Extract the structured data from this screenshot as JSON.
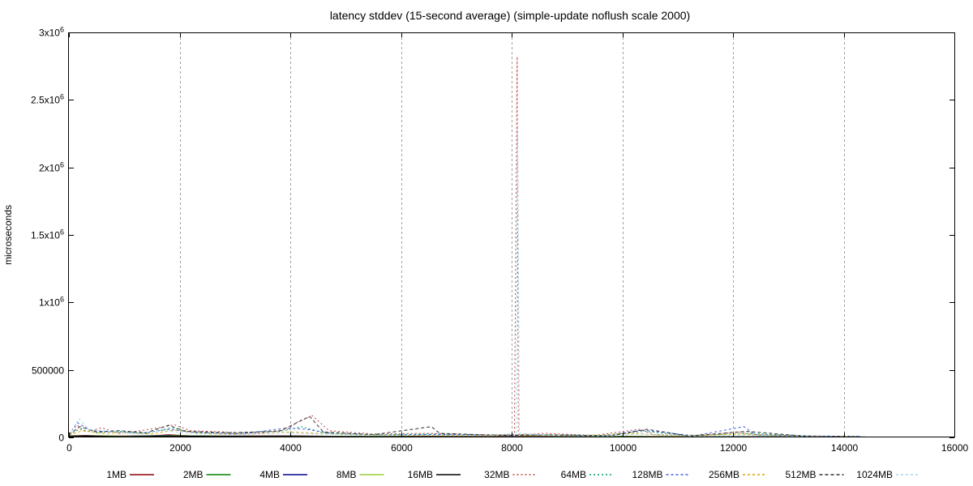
{
  "chart_data": {
    "type": "line",
    "title": "latency stddev (15-second average) (simple-update noflush scale 2000)",
    "xlabel": "",
    "ylabel": "microseconds",
    "xlim": [
      0,
      16000
    ],
    "ylim": [
      0,
      3000000
    ],
    "grid": "vertical dashed at x ticks",
    "legend_placement": "bottom",
    "x_ticks": [
      {
        "value": 0,
        "label": "0"
      },
      {
        "value": 2000,
        "label": "2000"
      },
      {
        "value": 4000,
        "label": "4000"
      },
      {
        "value": 6000,
        "label": "6000"
      },
      {
        "value": 8000,
        "label": "8000"
      },
      {
        "value": 10000,
        "label": "10000"
      },
      {
        "value": 12000,
        "label": "12000"
      },
      {
        "value": 14000,
        "label": "14000"
      },
      {
        "value": 16000,
        "label": "16000"
      }
    ],
    "y_ticks": [
      {
        "value": 0,
        "label": "0",
        "sup": ""
      },
      {
        "value": 500000,
        "label": "500000",
        "sup": ""
      },
      {
        "value": 1000000,
        "label": "1x10",
        "sup": "6"
      },
      {
        "value": 1500000,
        "label": "1.5x10",
        "sup": "6"
      },
      {
        "value": 2000000,
        "label": "2x10",
        "sup": "6"
      },
      {
        "value": 2500000,
        "label": "2.5x10",
        "sup": "6"
      },
      {
        "value": 3000000,
        "label": "3x10",
        "sup": "6"
      }
    ],
    "series": [
      {
        "name": "1MB",
        "color": "#8b0000",
        "dash": "solid",
        "xmax": 14300,
        "points": [
          [
            0,
            12000
          ],
          [
            300,
            15000
          ],
          [
            800,
            10000
          ],
          [
            1500,
            12000
          ],
          [
            1800,
            20000
          ],
          [
            2200,
            12000
          ],
          [
            3000,
            10000
          ],
          [
            4000,
            12000
          ],
          [
            5000,
            8000
          ],
          [
            6000,
            9000
          ],
          [
            8000,
            7000
          ],
          [
            10000,
            8000
          ],
          [
            12000,
            6000
          ],
          [
            14300,
            5000
          ]
        ]
      },
      {
        "name": "2MB",
        "color": "#008000",
        "dash": "solid",
        "xmax": 14200,
        "points": [
          [
            0,
            10000
          ],
          [
            400,
            12000
          ],
          [
            1000,
            9000
          ],
          [
            1800,
            15000
          ],
          [
            2500,
            10000
          ],
          [
            3500,
            8000
          ],
          [
            4500,
            9000
          ],
          [
            6000,
            7000
          ],
          [
            8000,
            6000
          ],
          [
            10000,
            7000
          ],
          [
            12000,
            6000
          ],
          [
            14200,
            5000
          ]
        ]
      },
      {
        "name": "4MB",
        "color": "#00008b",
        "dash": "solid",
        "xmax": 14300,
        "points": [
          [
            0,
            9000
          ],
          [
            300,
            11000
          ],
          [
            900,
            8000
          ],
          [
            1800,
            13000
          ],
          [
            2600,
            9000
          ],
          [
            4000,
            10000
          ],
          [
            5500,
            7000
          ],
          [
            7000,
            6000
          ],
          [
            9000,
            6000
          ],
          [
            11000,
            6000
          ],
          [
            13000,
            5000
          ],
          [
            14300,
            5000
          ]
        ]
      },
      {
        "name": "8MB",
        "color": "#9acd32",
        "dash": "solid",
        "xmax": 14400,
        "points": [
          [
            0,
            8000
          ],
          [
            500,
            10000
          ],
          [
            1200,
            7000
          ],
          [
            1900,
            12000
          ],
          [
            2800,
            8000
          ],
          [
            4000,
            9000
          ],
          [
            6000,
            6000
          ],
          [
            8000,
            5000
          ],
          [
            10000,
            6000
          ],
          [
            12000,
            5000
          ],
          [
            14400,
            4000
          ]
        ]
      },
      {
        "name": "16MB",
        "color": "#000000",
        "dash": "solid",
        "xmax": 14300,
        "points": [
          [
            0,
            7000
          ],
          [
            400,
            9000
          ],
          [
            1100,
            6000
          ],
          [
            1800,
            11000
          ],
          [
            2700,
            7000
          ],
          [
            3900,
            8000
          ],
          [
            5500,
            5000
          ],
          [
            7500,
            5000
          ],
          [
            9500,
            5000
          ],
          [
            11500,
            5000
          ],
          [
            14300,
            4000
          ]
        ]
      },
      {
        "name": "32MB",
        "color": "#c04040",
        "dash": "2,3",
        "xmax": 14300,
        "points": [
          [
            0,
            30000
          ],
          [
            150,
            90000
          ],
          [
            300,
            40000
          ],
          [
            600,
            70000
          ],
          [
            900,
            30000
          ],
          [
            1300,
            50000
          ],
          [
            1750,
            80000
          ],
          [
            1900,
            95000
          ],
          [
            2200,
            50000
          ],
          [
            2800,
            40000
          ],
          [
            3400,
            30000
          ],
          [
            3950,
            60000
          ],
          [
            4150,
            120000
          ],
          [
            4400,
            160000
          ],
          [
            4700,
            50000
          ],
          [
            5500,
            25000
          ],
          [
            6500,
            30000
          ],
          [
            7500,
            20000
          ],
          [
            8050,
            20000
          ],
          [
            8100,
            2820000
          ],
          [
            8120,
            20000
          ],
          [
            8600,
            30000
          ],
          [
            9500,
            15000
          ],
          [
            10300,
            60000
          ],
          [
            10600,
            20000
          ],
          [
            11500,
            15000
          ],
          [
            12100,
            40000
          ],
          [
            12500,
            15000
          ],
          [
            13500,
            10000
          ],
          [
            14300,
            8000
          ]
        ]
      },
      {
        "name": "64MB",
        "color": "#00a060",
        "dash": "2,3",
        "xmax": 14300,
        "points": [
          [
            0,
            25000
          ],
          [
            200,
            60000
          ],
          [
            500,
            35000
          ],
          [
            900,
            45000
          ],
          [
            1400,
            30000
          ],
          [
            1850,
            70000
          ],
          [
            2300,
            35000
          ],
          [
            3000,
            30000
          ],
          [
            3900,
            50000
          ],
          [
            4200,
            80000
          ],
          [
            4600,
            35000
          ],
          [
            5600,
            20000
          ],
          [
            6600,
            25000
          ],
          [
            7600,
            18000
          ],
          [
            8600,
            20000
          ],
          [
            9600,
            14000
          ],
          [
            10400,
            45000
          ],
          [
            11200,
            12000
          ],
          [
            12300,
            30000
          ],
          [
            13400,
            10000
          ],
          [
            14300,
            7000
          ]
        ]
      },
      {
        "name": "128MB",
        "color": "#4060e0",
        "dash": "3,3",
        "xmax": 14300,
        "points": [
          [
            0,
            20000
          ],
          [
            150,
            110000
          ],
          [
            400,
            50000
          ],
          [
            800,
            40000
          ],
          [
            1300,
            30000
          ],
          [
            1800,
            60000
          ],
          [
            2200,
            40000
          ],
          [
            3100,
            25000
          ],
          [
            3950,
            70000
          ],
          [
            4300,
            60000
          ],
          [
            4800,
            25000
          ],
          [
            5800,
            18000
          ],
          [
            6700,
            22000
          ],
          [
            7700,
            15000
          ],
          [
            8700,
            18000
          ],
          [
            9700,
            12000
          ],
          [
            10350,
            55000
          ],
          [
            11300,
            12000
          ],
          [
            12200,
            80000
          ],
          [
            12400,
            20000
          ],
          [
            13500,
            10000
          ],
          [
            14300,
            7000
          ]
        ]
      },
      {
        "name": "256MB",
        "color": "#e0a000",
        "dash": "3,3",
        "xmax": 14300,
        "points": [
          [
            0,
            18000
          ],
          [
            250,
            50000
          ],
          [
            600,
            30000
          ],
          [
            1000,
            35000
          ],
          [
            1500,
            25000
          ],
          [
            1900,
            55000
          ],
          [
            2400,
            30000
          ],
          [
            3200,
            22000
          ],
          [
            4000,
            40000
          ],
          [
            4500,
            30000
          ],
          [
            5200,
            18000
          ],
          [
            6200,
            15000
          ],
          [
            7200,
            14000
          ],
          [
            8200,
            15000
          ],
          [
            9200,
            12000
          ],
          [
            10200,
            30000
          ],
          [
            11000,
            10000
          ],
          [
            12100,
            25000
          ],
          [
            13200,
            9000
          ],
          [
            14300,
            6000
          ]
        ]
      },
      {
        "name": "512MB",
        "color": "#303030",
        "dash": "4,3",
        "xmax": 14300,
        "points": [
          [
            0,
            20000
          ],
          [
            200,
            80000
          ],
          [
            500,
            40000
          ],
          [
            900,
            50000
          ],
          [
            1400,
            35000
          ],
          [
            1800,
            90000
          ],
          [
            2100,
            45000
          ],
          [
            2900,
            35000
          ],
          [
            3800,
            45000
          ],
          [
            4350,
            155000
          ],
          [
            4600,
            40000
          ],
          [
            5500,
            20000
          ],
          [
            6550,
            80000
          ],
          [
            6700,
            30000
          ],
          [
            7800,
            15000
          ],
          [
            8800,
            18000
          ],
          [
            9800,
            12000
          ],
          [
            10450,
            60000
          ],
          [
            11200,
            10000
          ],
          [
            12250,
            45000
          ],
          [
            13300,
            9000
          ],
          [
            14300,
            6000
          ]
        ]
      },
      {
        "name": "1024MB",
        "color": "#a0d8e8",
        "dash": "3,3",
        "xmax": 14300,
        "points": [
          [
            0,
            15000
          ],
          [
            180,
            140000
          ],
          [
            350,
            60000
          ],
          [
            700,
            45000
          ],
          [
            1200,
            30000
          ],
          [
            1700,
            50000
          ],
          [
            2200,
            30000
          ],
          [
            3000,
            20000
          ],
          [
            3900,
            35000
          ],
          [
            4600,
            25000
          ],
          [
            5600,
            15000
          ],
          [
            6600,
            15000
          ],
          [
            7600,
            12000
          ],
          [
            8080,
            30000
          ],
          [
            8110,
            2300000
          ],
          [
            8140,
            30000
          ],
          [
            8800,
            12000
          ],
          [
            9800,
            10000
          ],
          [
            10300,
            25000
          ],
          [
            11300,
            9000
          ],
          [
            12300,
            15000
          ],
          [
            13300,
            8000
          ],
          [
            14300,
            5000
          ]
        ]
      }
    ]
  }
}
